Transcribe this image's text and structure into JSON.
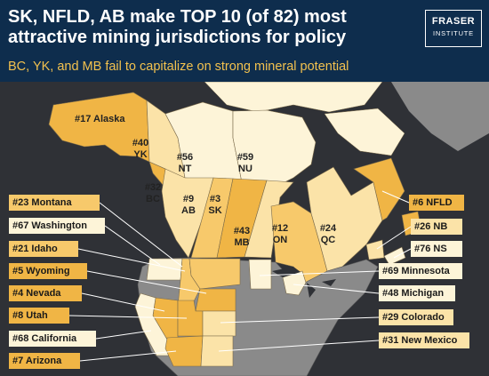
{
  "header": {
    "title": "SK, NFLD, AB make TOP 10 (of 82) most attractive mining jurisdictions for policy",
    "subtitle": "BC, YK, and MB fail to capitalize on strong mineral potential"
  },
  "logo": {
    "line1": "FRASER",
    "line2": "INSTITUTE"
  },
  "colors": {
    "background": "#2f3136",
    "header": "#0e2d4d",
    "accent": "#f2c14e",
    "top": "#f0b545",
    "high": "#f7c96b",
    "mid": "#fbe3a8",
    "low": "#fdf4d8",
    "unranked": "#8a8a8a"
  },
  "map_labels": {
    "alaska": "#17 Alaska",
    "yk": [
      "#40",
      "YK"
    ],
    "nt": [
      "#56",
      "NT"
    ],
    "nu": [
      "#59",
      "NU"
    ],
    "bc": [
      "#32",
      "BC"
    ],
    "ab": [
      "#9",
      "AB"
    ],
    "sk": [
      "#3",
      "SK"
    ],
    "mb": [
      "#43",
      "MB"
    ],
    "on": [
      "#12",
      "ON"
    ],
    "qc": [
      "#24",
      "QC"
    ]
  },
  "callouts": {
    "montana": "#23 Montana",
    "washington": "#67 Washington",
    "idaho": "#21 Idaho",
    "wyoming": "#5 Wyoming",
    "nevada": "#4 Nevada",
    "utah": "#8 Utah",
    "california": "#68 California",
    "arizona": "#7 Arizona",
    "nfld": "#6 NFLD",
    "nb": "#26 NB",
    "ns": "#76 NS",
    "minnesota": "#69 Minnesota",
    "michigan": "#48 Michigan",
    "colorado": "#29 Colorado",
    "new_mexico": "#31 New Mexico"
  }
}
